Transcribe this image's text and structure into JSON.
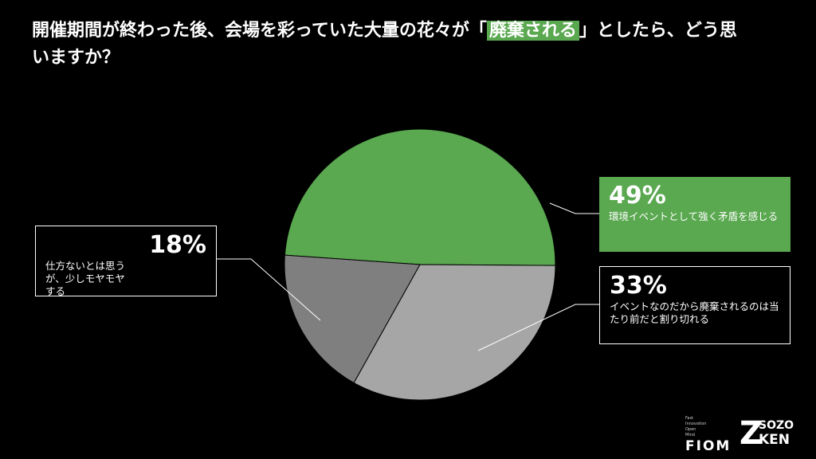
{
  "chart_data": {
    "type": "pie",
    "title_parts": [
      "開催期間が終わった後、会場を彩っていた大量の花々が「",
      "廃棄される",
      "」としたら、どう思いますか？"
    ],
    "categories": [
      "環境イベントとして強く矛盾を感じる",
      "イベントなのだから廃棄されるのは当たり前だと割り切れる",
      "仕方ないとは思うが、少しモヤモヤする"
    ],
    "values": [
      49,
      33,
      18
    ],
    "value_labels": [
      "49%",
      "33%",
      "18%"
    ],
    "colors": [
      "#5aa850",
      "#a6a6a6",
      "#7f7f7f"
    ]
  },
  "logos": {
    "fiom_words": [
      "Fast",
      "Innovation",
      "Open",
      "Mind"
    ],
    "fiom": "FIOM",
    "sozo": "SOZO",
    "ken": "KEN",
    "z": "Z"
  }
}
